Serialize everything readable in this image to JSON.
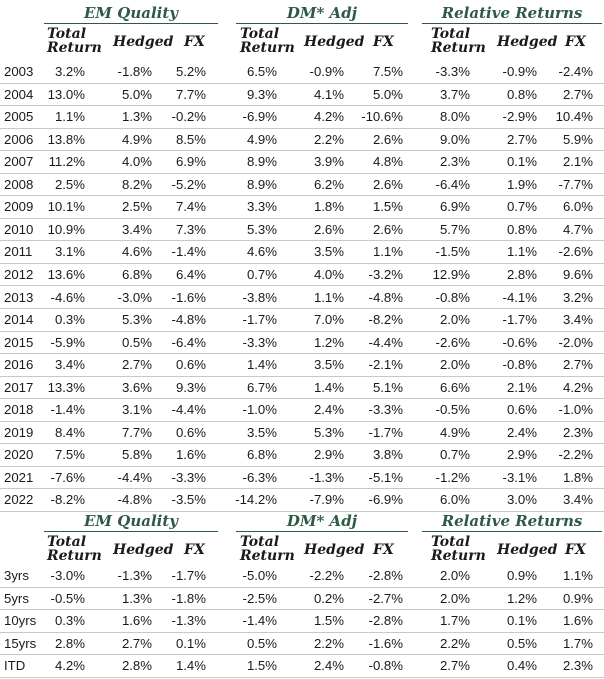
{
  "groups": [
    "EM Quality",
    "DM* Adj",
    "Relative Returns"
  ],
  "subheaders": {
    "total_line1": "Total",
    "total_line2": "Return",
    "hedged": "Hedged",
    "fx": "FX"
  },
  "annual_rows": [
    {
      "label": "2003",
      "values": [
        "3.2%",
        "-1.8%",
        "5.2%",
        "6.5%",
        "-0.9%",
        "7.5%",
        "-3.3%",
        "-0.9%",
        "-2.4%"
      ]
    },
    {
      "label": "2004",
      "values": [
        "13.0%",
        "5.0%",
        "7.7%",
        "9.3%",
        "4.1%",
        "5.0%",
        "3.7%",
        "0.8%",
        "2.7%"
      ]
    },
    {
      "label": "2005",
      "values": [
        "1.1%",
        "1.3%",
        "-0.2%",
        "-6.9%",
        "4.2%",
        "-10.6%",
        "8.0%",
        "-2.9%",
        "10.4%"
      ]
    },
    {
      "label": "2006",
      "values": [
        "13.8%",
        "4.9%",
        "8.5%",
        "4.9%",
        "2.2%",
        "2.6%",
        "9.0%",
        "2.7%",
        "5.9%"
      ]
    },
    {
      "label": "2007",
      "values": [
        "11.2%",
        "4.0%",
        "6.9%",
        "8.9%",
        "3.9%",
        "4.8%",
        "2.3%",
        "0.1%",
        "2.1%"
      ]
    },
    {
      "label": "2008",
      "values": [
        "2.5%",
        "8.2%",
        "-5.2%",
        "8.9%",
        "6.2%",
        "2.6%",
        "-6.4%",
        "1.9%",
        "-7.7%"
      ]
    },
    {
      "label": "2009",
      "values": [
        "10.1%",
        "2.5%",
        "7.4%",
        "3.3%",
        "1.8%",
        "1.5%",
        "6.9%",
        "0.7%",
        "6.0%"
      ]
    },
    {
      "label": "2010",
      "values": [
        "10.9%",
        "3.4%",
        "7.3%",
        "5.3%",
        "2.6%",
        "2.6%",
        "5.7%",
        "0.8%",
        "4.7%"
      ]
    },
    {
      "label": "2011",
      "values": [
        "3.1%",
        "4.6%",
        "-1.4%",
        "4.6%",
        "3.5%",
        "1.1%",
        "-1.5%",
        "1.1%",
        "-2.6%"
      ]
    },
    {
      "label": "2012",
      "values": [
        "13.6%",
        "6.8%",
        "6.4%",
        "0.7%",
        "4.0%",
        "-3.2%",
        "12.9%",
        "2.8%",
        "9.6%"
      ]
    },
    {
      "label": "2013",
      "values": [
        "-4.6%",
        "-3.0%",
        "-1.6%",
        "-3.8%",
        "1.1%",
        "-4.8%",
        "-0.8%",
        "-4.1%",
        "3.2%"
      ]
    },
    {
      "label": "2014",
      "values": [
        "0.3%",
        "5.3%",
        "-4.8%",
        "-1.7%",
        "7.0%",
        "-8.2%",
        "2.0%",
        "-1.7%",
        "3.4%"
      ]
    },
    {
      "label": "2015",
      "values": [
        "-5.9%",
        "0.5%",
        "-6.4%",
        "-3.3%",
        "1.2%",
        "-4.4%",
        "-2.6%",
        "-0.6%",
        "-2.0%"
      ]
    },
    {
      "label": "2016",
      "values": [
        "3.4%",
        "2.7%",
        "0.6%",
        "1.4%",
        "3.5%",
        "-2.1%",
        "2.0%",
        "-0.8%",
        "2.7%"
      ]
    },
    {
      "label": "2017",
      "values": [
        "13.3%",
        "3.6%",
        "9.3%",
        "6.7%",
        "1.4%",
        "5.1%",
        "6.6%",
        "2.1%",
        "4.2%"
      ]
    },
    {
      "label": "2018",
      "values": [
        "-1.4%",
        "3.1%",
        "-4.4%",
        "-1.0%",
        "2.4%",
        "-3.3%",
        "-0.5%",
        "0.6%",
        "-1.0%"
      ]
    },
    {
      "label": "2019",
      "values": [
        "8.4%",
        "7.7%",
        "0.6%",
        "3.5%",
        "5.3%",
        "-1.7%",
        "4.9%",
        "2.4%",
        "2.3%"
      ]
    },
    {
      "label": "2020",
      "values": [
        "7.5%",
        "5.8%",
        "1.6%",
        "6.8%",
        "2.9%",
        "3.8%",
        "0.7%",
        "2.9%",
        "-2.2%"
      ]
    },
    {
      "label": "2021",
      "values": [
        "-7.6%",
        "-4.4%",
        "-3.3%",
        "-6.3%",
        "-1.3%",
        "-5.1%",
        "-1.2%",
        "-3.1%",
        "1.8%"
      ]
    },
    {
      "label": "2022",
      "values": [
        "-8.2%",
        "-4.8%",
        "-3.5%",
        "-14.2%",
        "-7.9%",
        "-6.9%",
        "6.0%",
        "3.0%",
        "3.4%"
      ]
    }
  ],
  "period_rows": [
    {
      "label": "3yrs",
      "values": [
        "-3.0%",
        "-1.3%",
        "-1.7%",
        "-5.0%",
        "-2.2%",
        "-2.8%",
        "2.0%",
        "0.9%",
        "1.1%"
      ]
    },
    {
      "label": "5yrs",
      "values": [
        "-0.5%",
        "1.3%",
        "-1.8%",
        "-2.5%",
        "0.2%",
        "-2.7%",
        "2.0%",
        "1.2%",
        "0.9%"
      ]
    },
    {
      "label": "10yrs",
      "values": [
        "0.3%",
        "1.6%",
        "-1.3%",
        "-1.4%",
        "1.5%",
        "-2.8%",
        "1.7%",
        "0.1%",
        "1.6%"
      ]
    },
    {
      "label": "15yrs",
      "values": [
        "2.8%",
        "2.7%",
        "0.1%",
        "0.5%",
        "2.2%",
        "-1.6%",
        "2.2%",
        "0.5%",
        "1.7%"
      ]
    },
    {
      "label": "ITD",
      "values": [
        "4.2%",
        "2.8%",
        "1.4%",
        "1.5%",
        "2.4%",
        "-0.8%",
        "2.7%",
        "0.4%",
        "2.3%"
      ]
    }
  ]
}
